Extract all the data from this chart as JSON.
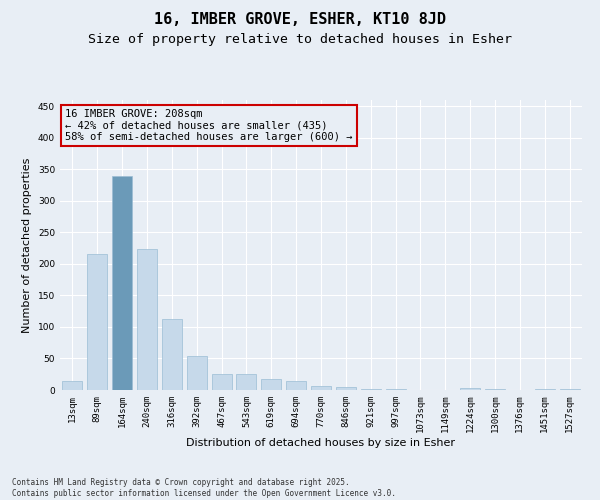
{
  "title": "16, IMBER GROVE, ESHER, KT10 8JD",
  "subtitle": "Size of property relative to detached houses in Esher",
  "xlabel": "Distribution of detached houses by size in Esher",
  "ylabel": "Number of detached properties",
  "categories": [
    "13sqm",
    "89sqm",
    "164sqm",
    "240sqm",
    "316sqm",
    "392sqm",
    "467sqm",
    "543sqm",
    "619sqm",
    "694sqm",
    "770sqm",
    "846sqm",
    "921sqm",
    "997sqm",
    "1073sqm",
    "1149sqm",
    "1224sqm",
    "1300sqm",
    "1376sqm",
    "1451sqm",
    "1527sqm"
  ],
  "values": [
    14,
    216,
    340,
    223,
    113,
    54,
    26,
    25,
    18,
    14,
    7,
    5,
    2,
    1,
    0,
    0,
    3,
    1,
    0,
    2,
    1
  ],
  "bar_color": "#c6d9ea",
  "bar_edge_color": "#9bbdd4",
  "background_color": "#e8eef5",
  "grid_color": "#ffffff",
  "annotation_box_text": "16 IMBER GROVE: 208sqm\n← 42% of detached houses are smaller (435)\n58% of semi-detached houses are larger (600) →",
  "annotation_box_color": "#cc0000",
  "property_bar_index": 2,
  "property_bar_color": "#6b9ab8",
  "ylim": [
    0,
    460
  ],
  "yticks": [
    0,
    50,
    100,
    150,
    200,
    250,
    300,
    350,
    400,
    450
  ],
  "footer_text": "Contains HM Land Registry data © Crown copyright and database right 2025.\nContains public sector information licensed under the Open Government Licence v3.0.",
  "title_fontsize": 11,
  "subtitle_fontsize": 9.5,
  "tick_fontsize": 6.5,
  "label_fontsize": 8,
  "annotation_fontsize": 7.5,
  "footer_fontsize": 5.5
}
